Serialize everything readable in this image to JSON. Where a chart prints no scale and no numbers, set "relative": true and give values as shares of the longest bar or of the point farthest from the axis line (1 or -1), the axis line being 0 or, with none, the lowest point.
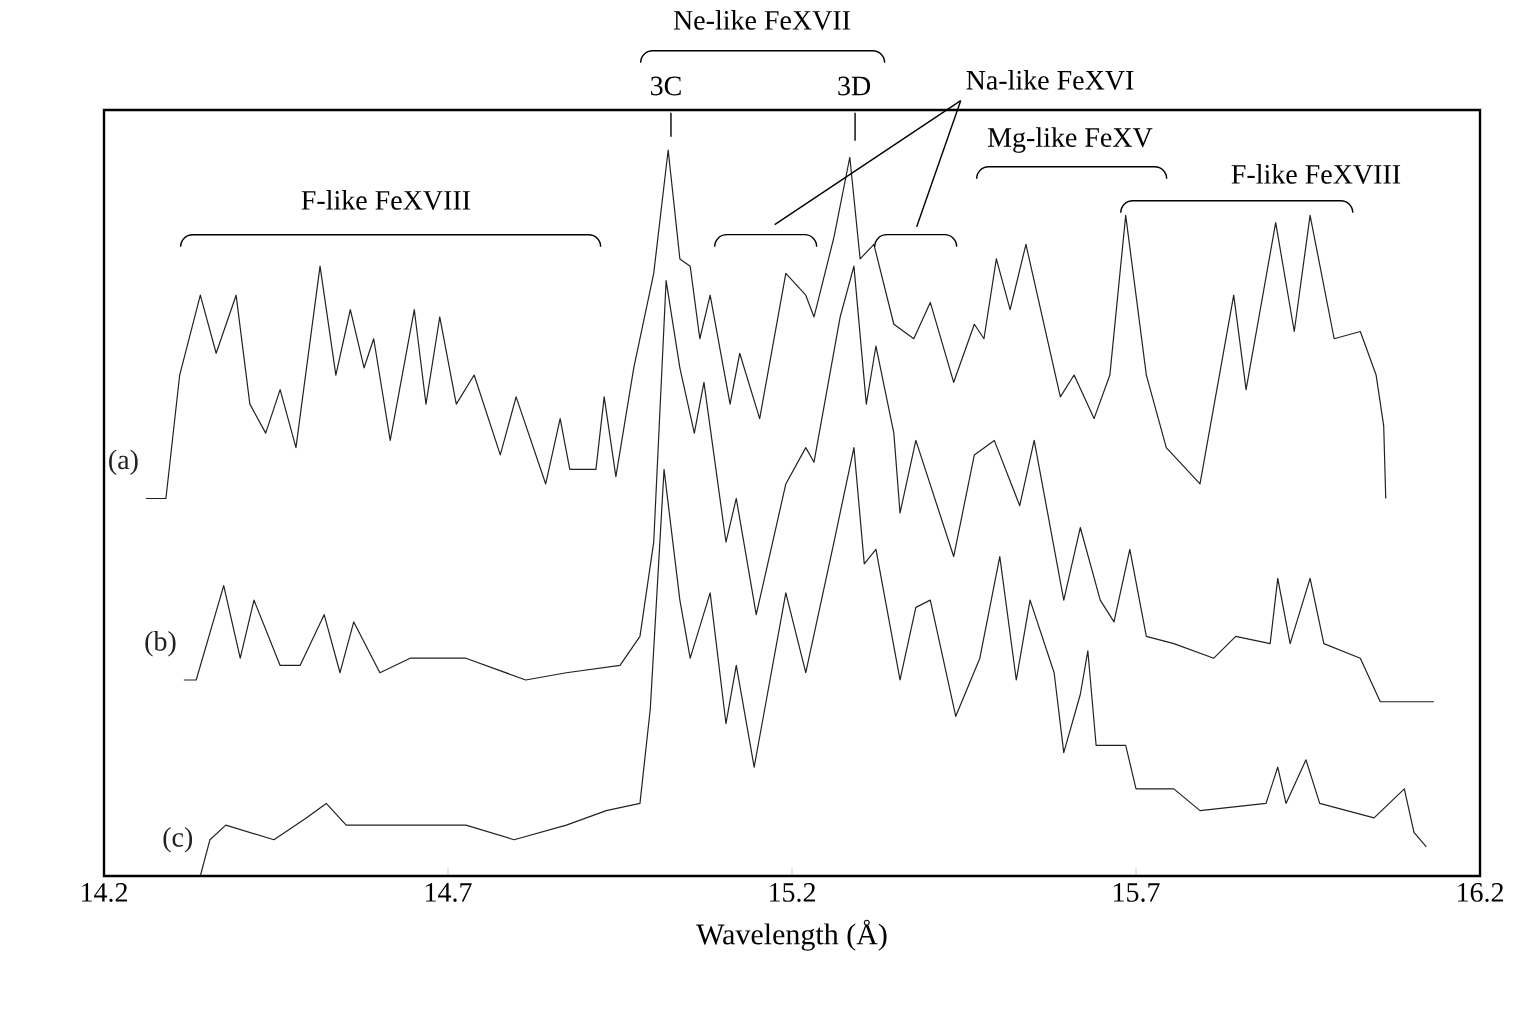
{
  "chart_data": {
    "type": "line",
    "relative": true,
    "xlabel": "Wavelength (Å)",
    "xlim": [
      14.2,
      16.2
    ],
    "xticks": [
      14.2,
      14.7,
      15.2,
      15.7,
      16.2
    ],
    "annotations": [
      "F-like FeXVIII",
      "Ne-like FeXVII",
      "3C",
      "3D",
      "Na-like FeXVI",
      "Mg-like FeXV",
      "F-like FeXVIII"
    ],
    "series": [
      {
        "name": "(a)",
        "color": "#222222",
        "x": [
          14.261,
          14.29,
          14.31,
          14.34,
          14.363,
          14.392,
          14.412,
          14.435,
          14.456,
          14.479,
          14.514,
          14.537,
          14.558,
          14.578,
          14.592,
          14.616,
          14.651,
          14.668,
          14.688,
          14.712,
          14.738,
          14.776,
          14.799,
          14.842,
          14.863,
          14.877,
          14.915,
          14.927,
          14.944,
          14.97,
          14.999,
          15.02,
          15.037,
          15.052,
          15.066,
          15.081,
          15.11,
          15.124,
          15.153,
          15.191,
          15.22,
          15.232,
          15.261,
          15.284,
          15.299,
          15.319,
          15.348,
          15.377,
          15.401,
          15.435,
          15.465,
          15.479,
          15.497,
          15.517,
          15.54,
          15.59,
          15.61,
          15.639,
          15.662,
          15.685,
          15.715,
          15.744,
          15.793,
          15.842,
          15.86,
          15.903,
          15.93,
          15.953,
          15.988,
          16.026,
          16.049,
          16.06,
          16.063
        ],
        "values": [
          0.52,
          0.52,
          0.69,
          0.8,
          0.72,
          0.8,
          0.65,
          0.61,
          0.67,
          0.59,
          0.84,
          0.69,
          0.78,
          0.7,
          0.74,
          0.6,
          0.78,
          0.65,
          0.77,
          0.65,
          0.69,
          0.58,
          0.66,
          0.54,
          0.63,
          0.56,
          0.56,
          0.66,
          0.55,
          0.7,
          0.83,
          1,
          0.85,
          0.84,
          0.74,
          0.8,
          0.65,
          0.72,
          0.63,
          0.83,
          0.8,
          0.77,
          0.88,
          0.99,
          0.85,
          0.87,
          0.76,
          0.74,
          0.79,
          0.68,
          0.76,
          0.74,
          0.85,
          0.78,
          0.87,
          0.66,
          0.69,
          0.63,
          0.69,
          0.91,
          0.69,
          0.59,
          0.54,
          0.8,
          0.67,
          0.9,
          0.75,
          0.91,
          0.74,
          0.75,
          0.69,
          0.62,
          0.52
        ]
      },
      {
        "name": "(b)",
        "color": "#222222",
        "x": [
          14.316,
          14.334,
          14.374,
          14.398,
          14.418,
          14.456,
          14.485,
          14.52,
          14.543,
          14.563,
          14.601,
          14.645,
          14.68,
          14.726,
          14.813,
          14.872,
          14.95,
          14.979,
          14.999,
          15.017,
          15.037,
          15.058,
          15.072,
          15.104,
          15.119,
          15.148,
          15.191,
          15.22,
          15.232,
          15.27,
          15.29,
          15.308,
          15.322,
          15.348,
          15.357,
          15.38,
          15.435,
          15.465,
          15.494,
          15.531,
          15.552,
          15.595,
          15.619,
          15.648,
          15.668,
          15.691,
          15.715,
          15.755,
          15.813,
          15.845,
          15.895,
          15.906,
          15.924,
          15.953,
          15.973,
          16.026,
          16.055,
          16.133
        ],
        "values": [
          0.27,
          0.27,
          0.4,
          0.3,
          0.38,
          0.29,
          0.29,
          0.36,
          0.28,
          0.35,
          0.28,
          0.3,
          0.3,
          0.3,
          0.27,
          0.28,
          0.29,
          0.33,
          0.46,
          0.82,
          0.7,
          0.61,
          0.68,
          0.46,
          0.52,
          0.36,
          0.54,
          0.59,
          0.57,
          0.77,
          0.84,
          0.65,
          0.73,
          0.61,
          0.5,
          0.6,
          0.44,
          0.58,
          0.6,
          0.51,
          0.6,
          0.38,
          0.48,
          0.38,
          0.35,
          0.45,
          0.33,
          0.32,
          0.3,
          0.33,
          0.32,
          0.41,
          0.32,
          0.41,
          0.32,
          0.3,
          0.24,
          0.24
        ]
      },
      {
        "name": "(c)",
        "color": "#222222",
        "x": [
          14.34,
          14.354,
          14.377,
          14.447,
          14.494,
          14.523,
          14.552,
          14.63,
          14.726,
          14.796,
          14.872,
          14.93,
          14.979,
          14.994,
          15.014,
          15.037,
          15.052,
          15.081,
          15.104,
          15.119,
          15.145,
          15.191,
          15.22,
          15.261,
          15.29,
          15.305,
          15.322,
          15.357,
          15.38,
          15.401,
          15.438,
          15.473,
          15.502,
          15.526,
          15.546,
          15.581,
          15.595,
          15.619,
          15.63,
          15.642,
          15.685,
          15.7,
          15.755,
          15.793,
          15.889,
          15.906,
          15.918,
          15.947,
          15.967,
          16.046,
          16.09,
          16.104,
          16.122
        ],
        "values": [
          0,
          0.05,
          0.07,
          0.05,
          0.08,
          0.1,
          0.07,
          0.07,
          0.07,
          0.05,
          0.07,
          0.09,
          0.1,
          0.23,
          0.56,
          0.38,
          0.3,
          0.39,
          0.21,
          0.29,
          0.15,
          0.39,
          0.28,
          0.46,
          0.59,
          0.43,
          0.45,
          0.27,
          0.37,
          0.38,
          0.22,
          0.3,
          0.44,
          0.27,
          0.38,
          0.28,
          0.17,
          0.25,
          0.31,
          0.18,
          0.18,
          0.12,
          0.12,
          0.09,
          0.1,
          0.15,
          0.1,
          0.16,
          0.1,
          0.08,
          0.12,
          0.06,
          0.04
        ]
      }
    ]
  }
}
